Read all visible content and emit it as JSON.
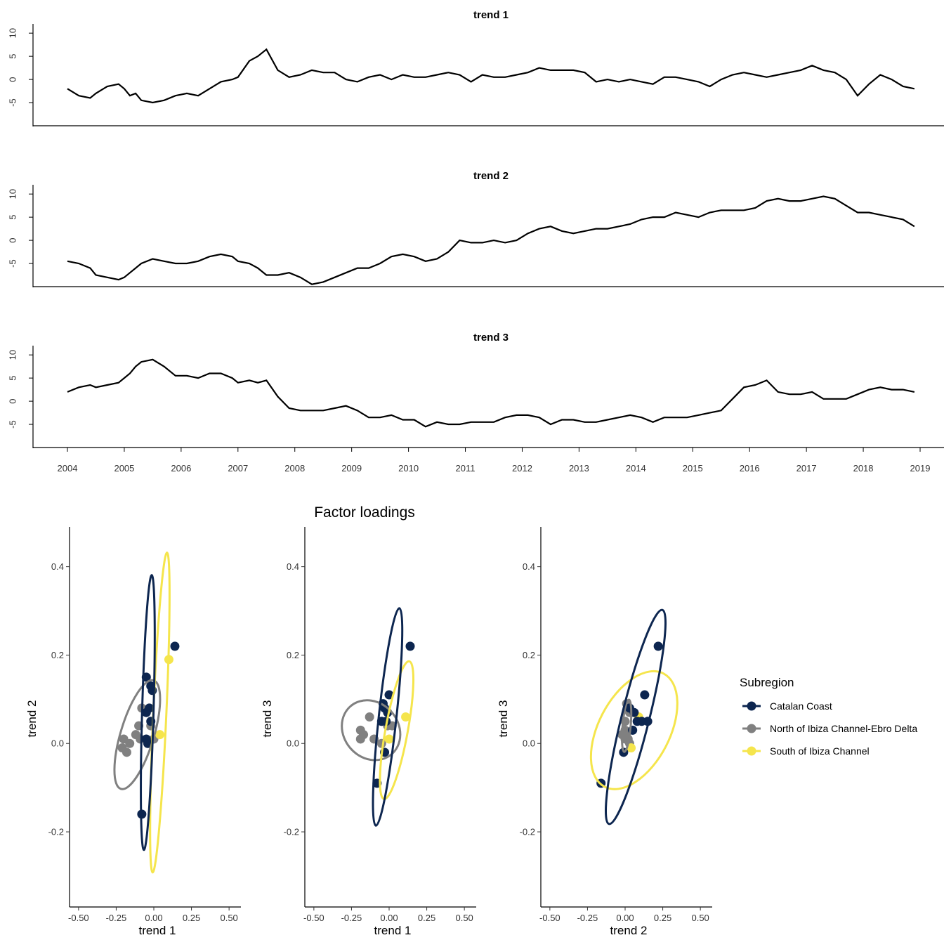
{
  "chart_data": [
    {
      "type": "line",
      "title": "trend 1",
      "xlim": [
        2004,
        2019.4
      ],
      "ylim": [
        -10,
        12
      ],
      "y_ticks": [
        "10",
        "5",
        "0",
        "-5"
      ],
      "x": [
        2004.0,
        2004.2,
        2004.4,
        2004.5,
        2004.7,
        2004.9,
        2005.0,
        2005.1,
        2005.2,
        2005.3,
        2005.5,
        2005.7,
        2005.9,
        2006.1,
        2006.3,
        2006.5,
        2006.7,
        2006.9,
        2007.0,
        2007.2,
        2007.35,
        2007.5,
        2007.7,
        2007.9,
        2008.1,
        2008.3,
        2008.5,
        2008.7,
        2008.9,
        2009.1,
        2009.3,
        2009.5,
        2009.7,
        2009.9,
        2010.1,
        2010.3,
        2010.5,
        2010.7,
        2010.9,
        2011.1,
        2011.3,
        2011.5,
        2011.7,
        2011.9,
        2012.1,
        2012.3,
        2012.5,
        2012.7,
        2012.9,
        2013.1,
        2013.3,
        2013.5,
        2013.7,
        2013.9,
        2014.1,
        2014.3,
        2014.5,
        2014.7,
        2014.9,
        2015.1,
        2015.3,
        2015.5,
        2015.7,
        2015.9,
        2016.1,
        2016.3,
        2016.5,
        2016.7,
        2016.9,
        2017.1,
        2017.3,
        2017.5,
        2017.7,
        2017.9,
        2018.1,
        2018.3,
        2018.5,
        2018.7,
        2018.9
      ],
      "values": [
        -2,
        -3.5,
        -4,
        -3,
        -1.5,
        -1,
        -2,
        -3.5,
        -3,
        -4.5,
        -5,
        -4.5,
        -3.5,
        -3,
        -3.5,
        -2,
        -0.5,
        0,
        0.5,
        4,
        5,
        6.5,
        2,
        0.5,
        1,
        2,
        1.5,
        1.5,
        0,
        -0.5,
        0.5,
        1,
        0,
        1,
        0.5,
        0.5,
        1,
        1.5,
        1,
        -0.5,
        1,
        0.5,
        0.5,
        1,
        1.5,
        2.5,
        2,
        2,
        2,
        1.5,
        -0.5,
        0,
        -0.5,
        0,
        -0.5,
        -1,
        0.5,
        0.5,
        0,
        -0.5,
        -1.5,
        0,
        1,
        1.5,
        1,
        0.5,
        1,
        1.5,
        2,
        3,
        2,
        1.5,
        0,
        -3.5,
        -1,
        1,
        0,
        -1.5,
        -2
      ]
    },
    {
      "type": "line",
      "title": "trend 2",
      "xlim": [
        2004,
        2019.4
      ],
      "ylim": [
        -10,
        12
      ],
      "y_ticks": [
        "10",
        "5",
        "0",
        "-5"
      ],
      "x": [
        2004.0,
        2004.2,
        2004.4,
        2004.5,
        2004.7,
        2004.9,
        2005.0,
        2005.1,
        2005.2,
        2005.3,
        2005.5,
        2005.7,
        2005.9,
        2006.1,
        2006.3,
        2006.5,
        2006.7,
        2006.9,
        2007.0,
        2007.2,
        2007.35,
        2007.5,
        2007.7,
        2007.9,
        2008.1,
        2008.3,
        2008.5,
        2008.7,
        2008.9,
        2009.1,
        2009.3,
        2009.5,
        2009.7,
        2009.9,
        2010.1,
        2010.3,
        2010.5,
        2010.7,
        2010.9,
        2011.1,
        2011.3,
        2011.5,
        2011.7,
        2011.9,
        2012.1,
        2012.3,
        2012.5,
        2012.7,
        2012.9,
        2013.1,
        2013.3,
        2013.5,
        2013.7,
        2013.9,
        2014.1,
        2014.3,
        2014.5,
        2014.7,
        2014.9,
        2015.1,
        2015.3,
        2015.5,
        2015.7,
        2015.9,
        2016.1,
        2016.3,
        2016.5,
        2016.7,
        2016.9,
        2017.1,
        2017.3,
        2017.5,
        2017.7,
        2017.9,
        2018.1,
        2018.3,
        2018.5,
        2018.7,
        2018.9
      ],
      "values": [
        -4.5,
        -5,
        -6,
        -7.5,
        -8,
        -8.5,
        -8,
        -7,
        -6,
        -5,
        -4,
        -4.5,
        -5,
        -5,
        -4.5,
        -3.5,
        -3,
        -3.5,
        -4.5,
        -5,
        -6,
        -7.5,
        -7.5,
        -7,
        -8,
        -9.5,
        -9,
        -8,
        -7,
        -6,
        -6,
        -5,
        -3.5,
        -3,
        -3.5,
        -4.5,
        -4,
        -2.5,
        0,
        -0.5,
        -0.5,
        0,
        -0.5,
        0,
        1.5,
        2.5,
        3,
        2,
        1.5,
        2,
        2.5,
        2.5,
        3,
        3.5,
        4.5,
        5,
        5,
        6,
        5.5,
        5,
        6,
        6.5,
        6.5,
        6.5,
        7,
        8.5,
        9,
        8.5,
        8.5,
        9,
        9.5,
        9,
        7.5,
        6,
        6,
        5.5,
        5,
        4.5,
        3
      ]
    },
    {
      "type": "line",
      "title": "trend 3",
      "xlim": [
        2004,
        2019.4
      ],
      "ylim": [
        -10,
        12
      ],
      "y_ticks": [
        "10",
        "5",
        "0",
        "-5"
      ],
      "x_ticks": [
        "2004",
        "2005",
        "2006",
        "2007",
        "2008",
        "2009",
        "2010",
        "2011",
        "2012",
        "2013",
        "2014",
        "2015",
        "2016",
        "2017",
        "2018",
        "2019"
      ],
      "x": [
        2004.0,
        2004.2,
        2004.4,
        2004.5,
        2004.7,
        2004.9,
        2005.0,
        2005.1,
        2005.2,
        2005.3,
        2005.5,
        2005.7,
        2005.9,
        2006.1,
        2006.3,
        2006.5,
        2006.7,
        2006.9,
        2007.0,
        2007.2,
        2007.35,
        2007.5,
        2007.7,
        2007.9,
        2008.1,
        2008.3,
        2008.5,
        2008.7,
        2008.9,
        2009.1,
        2009.3,
        2009.5,
        2009.7,
        2009.9,
        2010.1,
        2010.3,
        2010.5,
        2010.7,
        2010.9,
        2011.1,
        2011.3,
        2011.5,
        2011.7,
        2011.9,
        2012.1,
        2012.3,
        2012.5,
        2012.7,
        2012.9,
        2013.1,
        2013.3,
        2013.5,
        2013.7,
        2013.9,
        2014.1,
        2014.3,
        2014.5,
        2014.7,
        2014.9,
        2015.1,
        2015.3,
        2015.5,
        2015.7,
        2015.9,
        2016.1,
        2016.3,
        2016.5,
        2016.7,
        2016.9,
        2017.1,
        2017.3,
        2017.5,
        2017.7,
        2017.9,
        2018.1,
        2018.3,
        2018.5,
        2018.7,
        2018.9
      ],
      "values": [
        2,
        3,
        3.5,
        3,
        3.5,
        4,
        5,
        6,
        7.5,
        8.5,
        9,
        7.5,
        5.5,
        5.5,
        5,
        6,
        6,
        5,
        4,
        4.5,
        4,
        4.5,
        1,
        -1.5,
        -2,
        -2,
        -2,
        -1.5,
        -1,
        -2,
        -3.5,
        -3.5,
        -3,
        -4,
        -4,
        -5.5,
        -4.5,
        -5,
        -5,
        -4.5,
        -4.5,
        -4.5,
        -3.5,
        -3,
        -3,
        -3.5,
        -5,
        -4,
        -4,
        -4.5,
        -4.5,
        -4,
        -3.5,
        -3,
        -3.5,
        -4.5,
        -3.5,
        -3.5,
        -3.5,
        -3,
        -2.5,
        -2,
        0.5,
        3,
        3.5,
        4.5,
        2,
        1.5,
        1.5,
        2,
        0.5,
        0.5,
        0.5,
        1.5,
        2.5,
        3,
        2.5,
        2.5,
        2
      ]
    },
    {
      "type": "scatter",
      "title": "Factor loadings",
      "panels": [
        {
          "xlabel": "trend 1",
          "ylabel": "trend 2",
          "xlim": [
            -0.56,
            0.56
          ],
          "ylim": [
            -0.37,
            0.49
          ],
          "x_ticks": [
            -0.5,
            -0.25,
            0,
            0.25,
            0.5
          ],
          "y_ticks": [
            0.4,
            0.2,
            0.0,
            -0.2
          ],
          "series": [
            {
              "name": "Catalan Coast",
              "color": "#0d2650",
              "points": [
                [
                  0.14,
                  0.22
                ],
                [
                  -0.05,
                  0.15
                ],
                [
                  -0.02,
                  0.13
                ],
                [
                  -0.01,
                  0.12
                ],
                [
                  -0.03,
                  0.08
                ],
                [
                  -0.05,
                  0.07
                ],
                [
                  -0.02,
                  0.05
                ],
                [
                  -0.05,
                  0.01
                ],
                [
                  -0.04,
                  0.0
                ],
                [
                  -0.08,
                  -0.16
                ]
              ],
              "ellipse": {
                "cx": -0.04,
                "cy": 0.07,
                "rx": 0.312,
                "ry": 0.037,
                "angle_deg": -85.2
              }
            },
            {
              "name": "North of Ibiza Channel-Ebro Delta",
              "color": "#808080",
              "points": [
                [
                  -0.08,
                  0.08
                ],
                [
                  -0.1,
                  0.04
                ],
                [
                  -0.02,
                  0.04
                ],
                [
                  -0.2,
                  0.01
                ],
                [
                  -0.16,
                  0.0
                ],
                [
                  -0.21,
                  -0.01
                ],
                [
                  -0.18,
                  -0.02
                ],
                [
                  -0.09,
                  0.01
                ],
                [
                  -0.12,
                  0.02
                ],
                [
                  0.0,
                  0.01
                ]
              ],
              "ellipse": {
                "cx": -0.11,
                "cy": 0.02,
                "rx": 0.164,
                "ry": 0.053,
                "angle_deg": -48.5
              }
            },
            {
              "name": "South of Ibiza Channel",
              "color": "#f5e54c",
              "points": [
                [
                  0.1,
                  0.19
                ],
                [
                  0.04,
                  0.02
                ]
              ],
              "ellipse": {
                "cx": 0.04,
                "cy": 0.07,
                "rx": 0.365,
                "ry": 0.041,
                "angle_deg": -82.5
              }
            }
          ]
        },
        {
          "xlabel": "trend 1",
          "ylabel": "trend 3",
          "xlim": [
            -0.56,
            0.56
          ],
          "ylim": [
            -0.37,
            0.49
          ],
          "x_ticks": [
            -0.5,
            -0.25,
            0,
            0.25,
            0.5
          ],
          "y_ticks": [
            0.4,
            0.2,
            0.0,
            -0.2
          ],
          "series": [
            {
              "name": "Catalan Coast",
              "color": "#0d2650",
              "points": [
                [
                  0.14,
                  0.22
                ],
                [
                  0.0,
                  0.11
                ],
                [
                  -0.04,
                  0.09
                ],
                [
                  -0.03,
                  0.08
                ],
                [
                  -0.01,
                  0.07
                ],
                [
                  -0.05,
                  0.05
                ],
                [
                  -0.02,
                  0.05
                ],
                [
                  -0.03,
                  -0.02
                ],
                [
                  -0.08,
                  -0.09
                ]
              ],
              "ellipse": {
                "cx": -0.01,
                "cy": 0.06,
                "rx": 0.258,
                "ry": 0.045,
                "angle_deg": -72.4
              }
            },
            {
              "name": "North of Ibiza Channel-Ebro Delta",
              "color": "#808080",
              "points": [
                [
                  -0.13,
                  0.06
                ],
                [
                  -0.19,
                  0.03
                ],
                [
                  -0.17,
                  0.02
                ],
                [
                  -0.19,
                  0.01
                ],
                [
                  -0.1,
                  0.01
                ],
                [
                  -0.05,
                  0.0
                ],
                [
                  -0.01,
                  0.04
                ],
                [
                  0.02,
                  0.04
                ]
              ],
              "ellipse": {
                "cx": -0.12,
                "cy": 0.03,
                "rx": 0.145,
                "ry": 0.074,
                "angle_deg": -16.0
              }
            },
            {
              "name": "South of Ibiza Channel",
              "color": "#f5e54c",
              "points": [
                [
                  0.11,
                  0.06
                ],
                [
                  0.0,
                  0.01
                ]
              ],
              "ellipse": {
                "cx": 0.05,
                "cy": 0.03,
                "rx": 0.177,
                "ry": 0.045,
                "angle_deg": -61.7
              }
            }
          ]
        },
        {
          "xlabel": "trend 2",
          "ylabel": "trend 3",
          "xlim": [
            -0.56,
            0.56
          ],
          "ylim": [
            -0.37,
            0.49
          ],
          "x_ticks": [
            -0.5,
            -0.25,
            0,
            0.25,
            0.5
          ],
          "y_ticks": [
            0.4,
            0.2,
            0.0,
            -0.2
          ],
          "series": [
            {
              "name": "Catalan Coast",
              "color": "#0d2650",
              "points": [
                [
                  0.22,
                  0.22
                ],
                [
                  0.13,
                  0.11
                ],
                [
                  0.03,
                  0.08
                ],
                [
                  0.06,
                  0.07
                ],
                [
                  0.08,
                  0.05
                ],
                [
                  0.11,
                  0.05
                ],
                [
                  0.15,
                  0.05
                ],
                [
                  0.05,
                  0.03
                ],
                [
                  -0.01,
                  -0.02
                ],
                [
                  -0.16,
                  -0.09
                ]
              ],
              "ellipse": {
                "cx": 0.07,
                "cy": 0.06,
                "rx": 0.3,
                "ry": 0.048,
                "angle_deg": -53.8
              }
            },
            {
              "name": "North of Ibiza Channel-Ebro Delta",
              "color": "#808080",
              "points": [
                [
                  0.01,
                  0.09
                ],
                [
                  0.03,
                  0.07
                ],
                [
                  0.0,
                  0.05
                ],
                [
                  0.0,
                  0.03
                ],
                [
                  -0.02,
                  0.02
                ],
                [
                  0.0,
                  0.02
                ],
                [
                  0.02,
                  0.01
                ],
                [
                  0.03,
                  0.0
                ],
                [
                  0.0,
                  0.01
                ]
              ],
              "ellipse": {
                "cx": 0.01,
                "cy": 0.04,
                "rx": 0.061,
                "ry": 0.022,
                "angle_deg": -75.4
              }
            },
            {
              "name": "South of Ibiza Channel",
              "color": "#f5e54c",
              "points": [
                [
                  0.09,
                  0.06
                ],
                [
                  0.04,
                  -0.01
                ]
              ],
              "ellipse": {
                "cx": 0.06,
                "cy": 0.03,
                "rx": 0.234,
                "ry": 0.094,
                "angle_deg": -33.2
              }
            }
          ]
        }
      ],
      "legend": {
        "title": "Subregion",
        "entries": [
          "Catalan Coast",
          "North of Ibiza Channel-Ebro Delta",
          "South of Ibiza Channel"
        ],
        "colors": [
          "#0d2650",
          "#808080",
          "#f5e54c"
        ]
      }
    }
  ]
}
